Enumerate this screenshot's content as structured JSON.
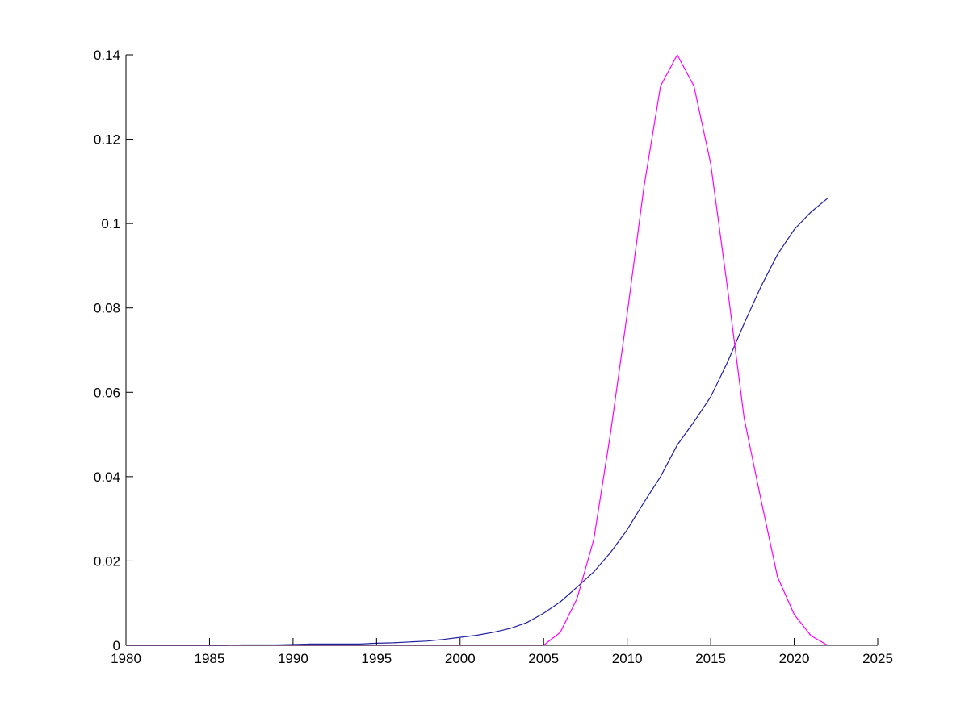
{
  "chart_data": {
    "type": "line",
    "title": "",
    "xlabel": "",
    "ylabel": "",
    "xlim": [
      1980,
      2025
    ],
    "ylim": [
      0,
      0.14
    ],
    "grid": false,
    "legend": "none",
    "x_ticks": [
      "1980",
      "1985",
      "1990",
      "1995",
      "2000",
      "2005",
      "2010",
      "2015",
      "2020",
      "2025"
    ],
    "y_ticks": [
      "0",
      "0.02",
      "0.04",
      "0.06",
      "0.08",
      "0.1",
      "0.12",
      "0.14"
    ],
    "series": [
      {
        "color": "#2020a0",
        "x": [
          1980,
          1981,
          1982,
          1983,
          1984,
          1985,
          1986,
          1987,
          1988,
          1989,
          1990,
          1991,
          1992,
          1993,
          1994,
          1995,
          1996,
          1997,
          1998,
          1999,
          2000,
          2001,
          2002,
          2003,
          2004,
          2005,
          2006,
          2007,
          2008,
          2009,
          2010,
          2011,
          2012,
          2013,
          2014,
          2015,
          2016,
          2017,
          2018,
          2019,
          2020,
          2021,
          2022
        ],
        "y": [
          0,
          0,
          0,
          0,
          0,
          0,
          0,
          0.0001,
          0.0001,
          0.0001,
          0.0002,
          0.0003,
          0.0003,
          0.0003,
          0.0003,
          0.0005,
          0.0006,
          0.0008,
          0.001,
          0.0014,
          0.0019,
          0.0024,
          0.0031,
          0.004,
          0.0054,
          0.0076,
          0.0103,
          0.0138,
          0.0174,
          0.022,
          0.0274,
          0.0339,
          0.04,
          0.0475,
          0.053,
          0.0589,
          0.0671,
          0.0763,
          0.085,
          0.0927,
          0.0986,
          0.1027,
          0.106
        ]
      },
      {
        "color": "#ff00ff",
        "x": [
          1980,
          2005,
          2006,
          2007,
          2008,
          2009,
          2010,
          2011,
          2012,
          2013,
          2014,
          2015,
          2016,
          2017,
          2018,
          2019,
          2020,
          2021,
          2022
        ],
        "y": [
          0,
          0,
          0.0031,
          0.0111,
          0.0251,
          0.0502,
          0.0786,
          0.1086,
          0.1326,
          0.14,
          0.1326,
          0.1142,
          0.0849,
          0.0539,
          0.0347,
          0.0162,
          0.0073,
          0.0023,
          0
        ]
      }
    ]
  }
}
